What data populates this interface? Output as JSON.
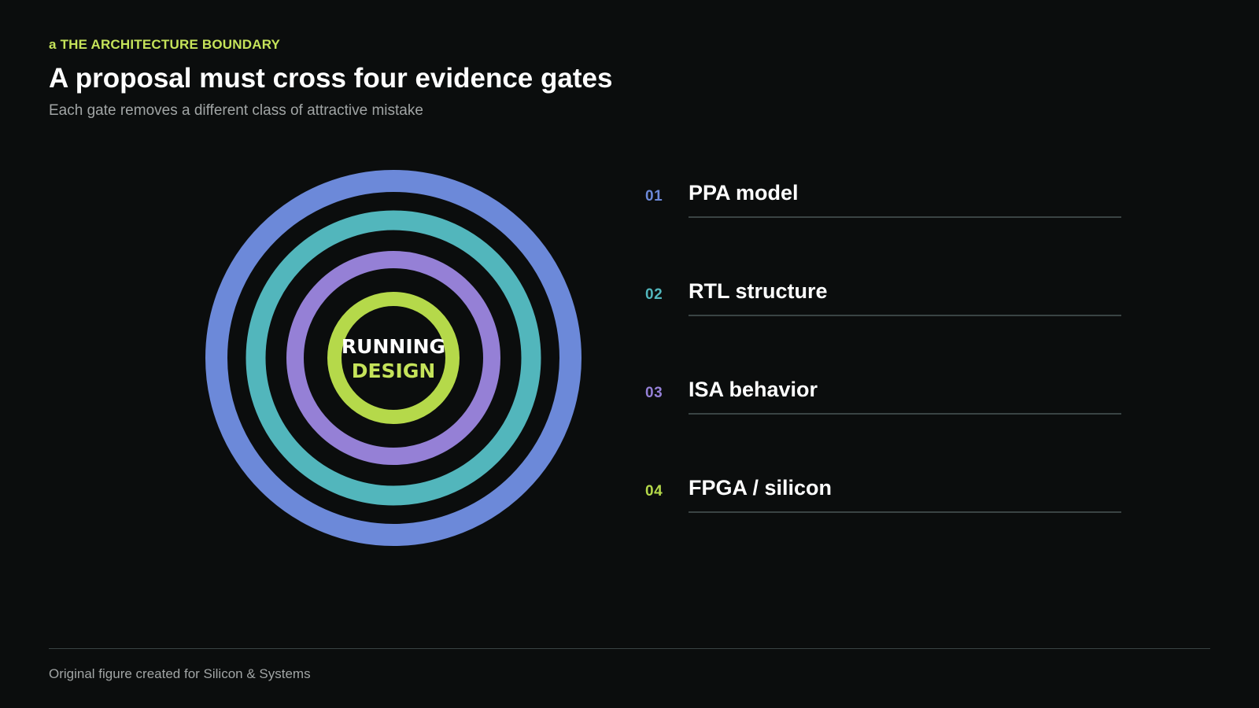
{
  "header": {
    "kicker": "a THE ARCHITECTURE BOUNDARY",
    "title": "A proposal must cross four evidence gates",
    "subtitle": "Each gate removes a different class of attractive mistake"
  },
  "center": {
    "line1": "RUNNING",
    "line2": "DESIGN"
  },
  "gates": [
    {
      "num": "01",
      "label": "PPA model",
      "color": "#6c89d9"
    },
    {
      "num": "02",
      "label": "RTL structure",
      "color": "#52b6bc"
    },
    {
      "num": "03",
      "label": "ISA behavior",
      "color": "#9580d6"
    },
    {
      "num": "04",
      "label": "FPGA / silicon",
      "color": "#b5d94a"
    }
  ],
  "colors": {
    "background": "#0b0d0d",
    "accent": "#c5e35a",
    "rule": "#3a4444",
    "muted_text": "#a1a5a5"
  },
  "footer": {
    "credit": "Original figure created for Silicon & Systems"
  }
}
